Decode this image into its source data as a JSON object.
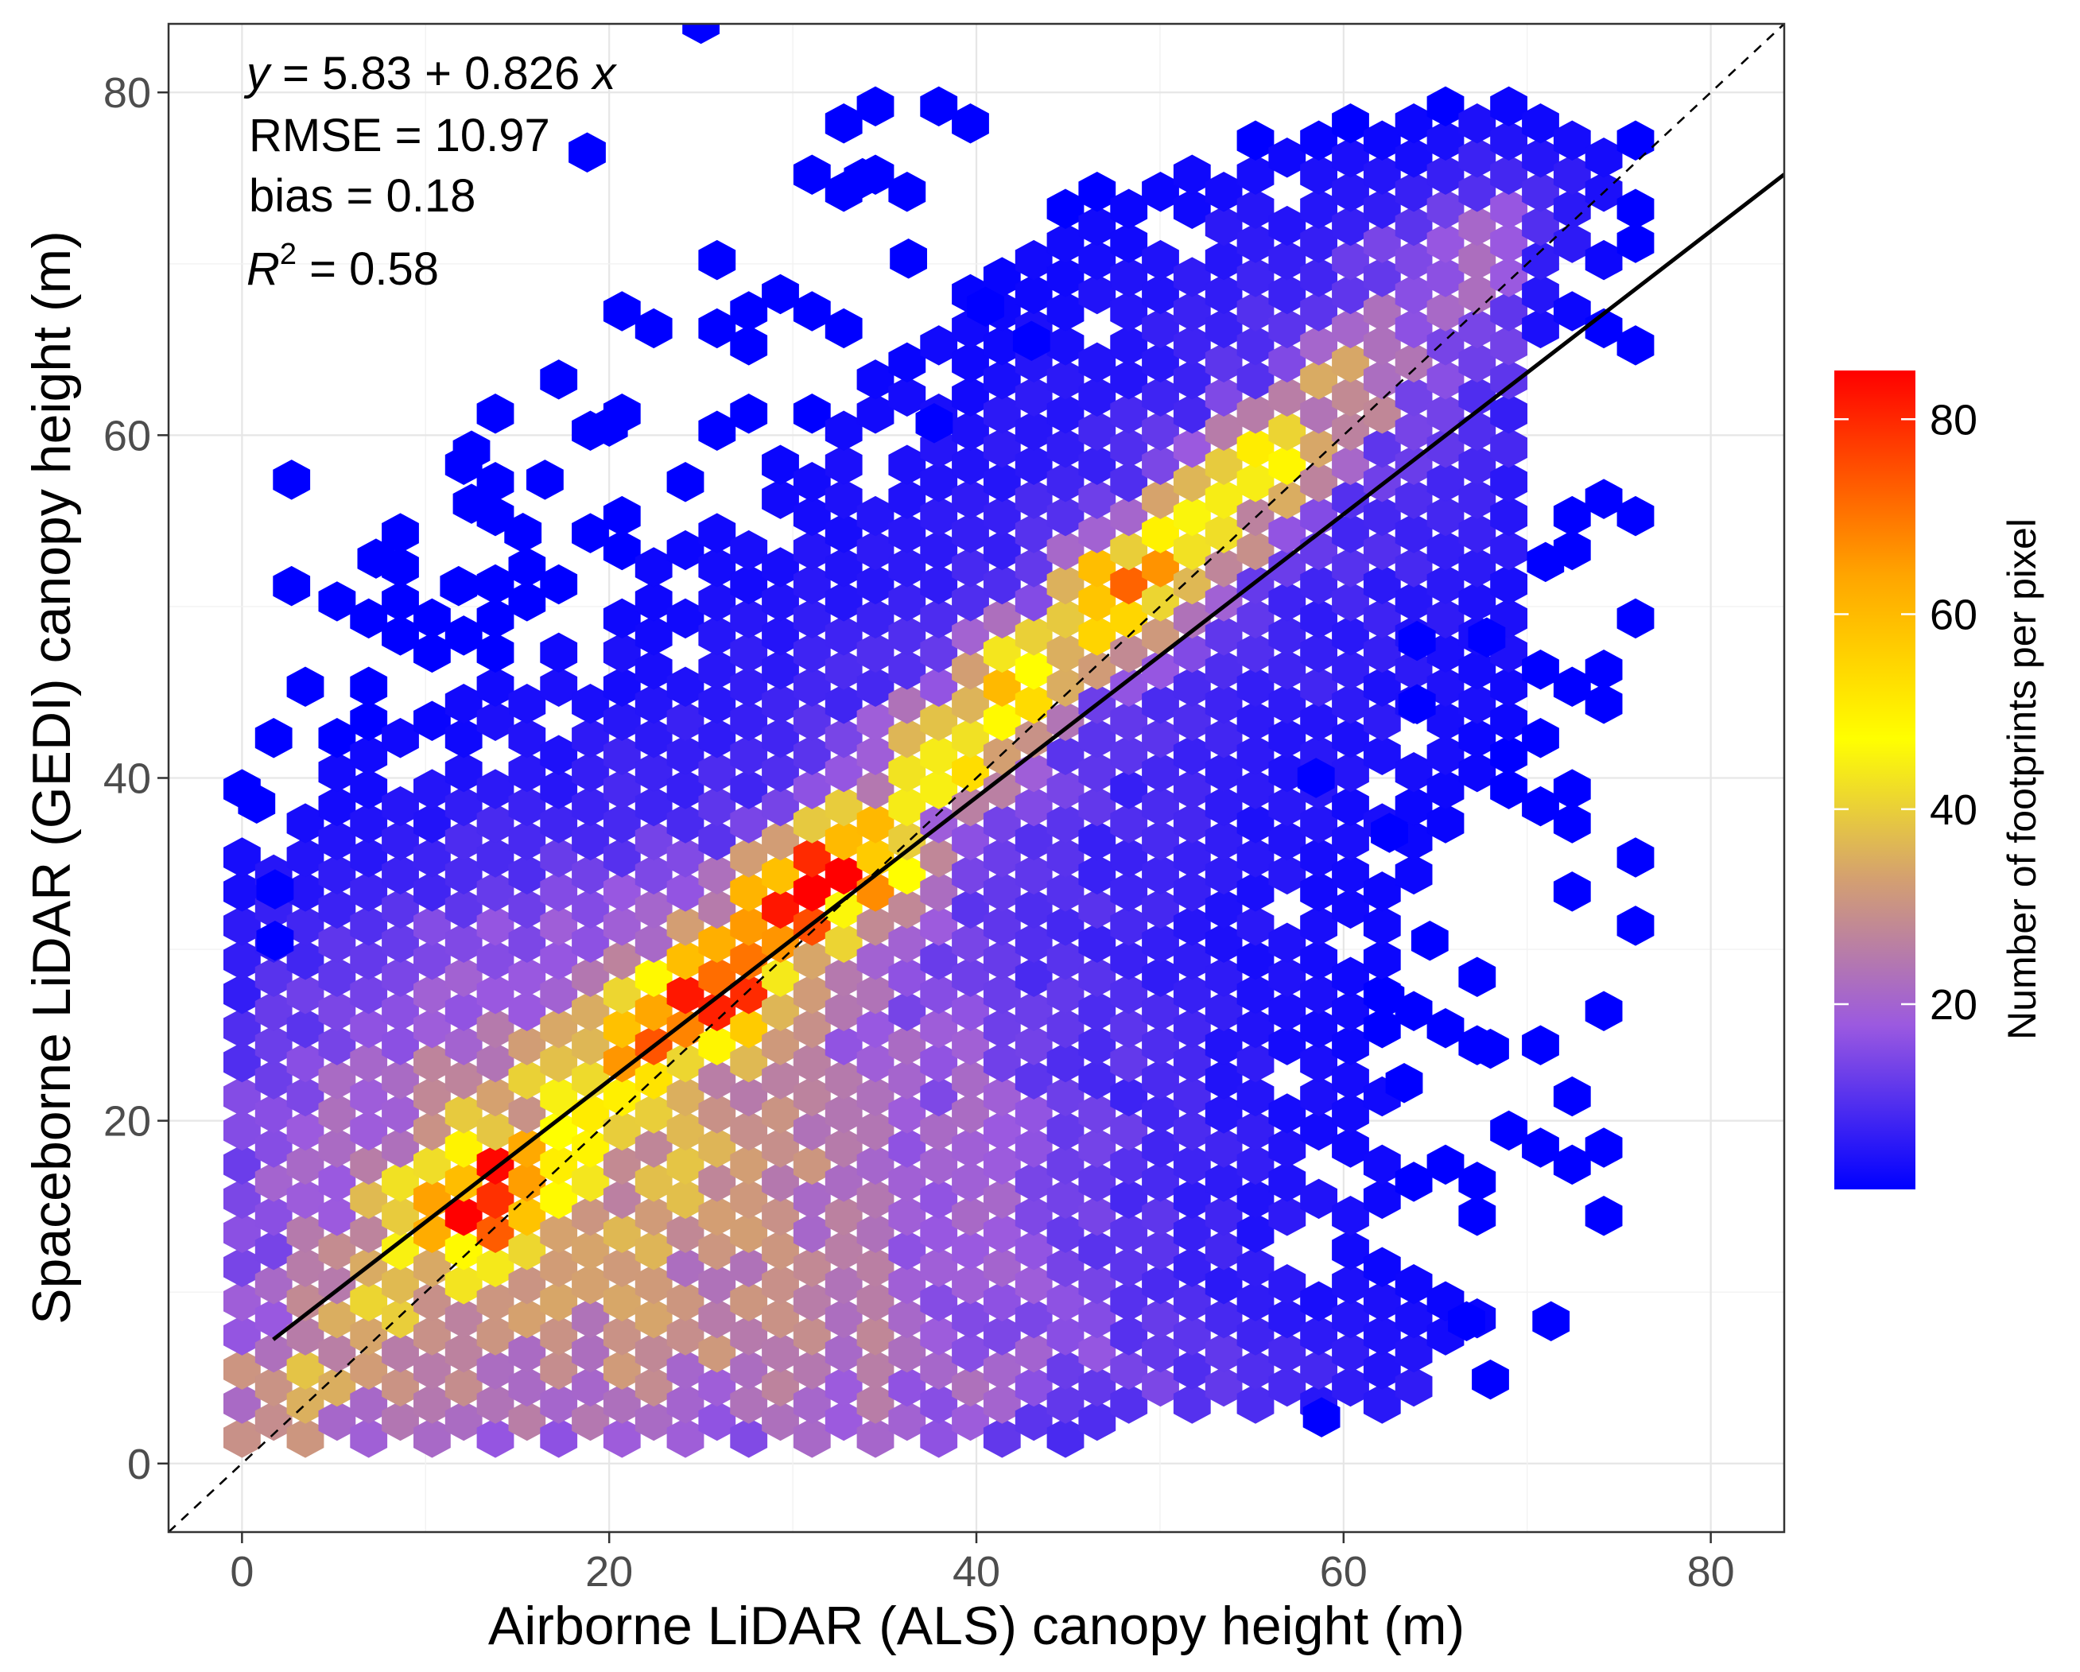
{
  "chart_data": {
    "type": "hexbin",
    "title": "",
    "xlabel": "Airborne LiDAR (ALS) canopy height (m)",
    "ylabel": "Spaceborne LiDAR (GEDI) canopy height (m)",
    "xlim": [
      -4,
      84
    ],
    "ylim": [
      -4,
      84
    ],
    "xticks": [
      "0",
      "20",
      "40",
      "60",
      "80"
    ],
    "yticks": [
      "0",
      "20",
      "40",
      "60",
      "80"
    ],
    "grid": true,
    "annotations": {
      "equation_y": "y",
      "equation_rest": " = 5.83 + 0.826 ",
      "equation_x": "x",
      "rmse": "RMSE = 10.97",
      "bias": "bias = 0.18",
      "r2_r": "R",
      "r2_sup": "2",
      "r2_value": " = 0.58"
    },
    "regression": {
      "intercept": 5.83,
      "slope": 0.826,
      "x_range": [
        1.7,
        84
      ]
    },
    "identity_line": {
      "slope": 1,
      "intercept": 0,
      "style": "dashed"
    },
    "legend": {
      "title": "Number of footprints per pixel",
      "position": "right",
      "range": [
        1,
        85
      ],
      "ticks": [
        "20",
        "40",
        "60",
        "80"
      ],
      "colors": [
        "#0000ff",
        "#9b59e0",
        "#d4a070",
        "#ffff00",
        "#ffa500",
        "#ff0000"
      ]
    },
    "hex_size": 1.15,
    "ridge_points": [
      {
        "x": 10,
        "y": 16,
        "count": 45
      },
      {
        "x": 12,
        "y": 16,
        "count": 58
      },
      {
        "x": 22,
        "y": 25,
        "count": 38
      },
      {
        "x": 26,
        "y": 28,
        "count": 60
      },
      {
        "x": 30,
        "y": 33,
        "count": 70
      },
      {
        "x": 33,
        "y": 35,
        "count": 72
      },
      {
        "x": 38,
        "y": 42,
        "count": 48
      },
      {
        "x": 42,
        "y": 46,
        "count": 45
      },
      {
        "x": 48,
        "y": 51,
        "count": 65
      },
      {
        "x": 52,
        "y": 54,
        "count": 48
      },
      {
        "x": 56,
        "y": 58,
        "count": 42
      },
      {
        "x": 60,
        "y": 62,
        "count": 25
      }
    ],
    "outlier_points": [
      [
        25,
        84
      ],
      [
        18.8,
        76.5
      ],
      [
        33.8,
        75
      ],
      [
        36.3,
        70.3
      ],
      [
        40.5,
        67.5
      ],
      [
        43,
        65.5
      ],
      [
        20,
        60.5
      ],
      [
        37.7,
        60.7
      ],
      [
        2.7,
        57.4
      ],
      [
        12.5,
        59.1
      ],
      [
        16.5,
        57.4
      ],
      [
        12.5,
        56
      ],
      [
        15.3,
        54.3
      ],
      [
        7.3,
        52.8
      ],
      [
        2.7,
        51.2
      ],
      [
        11.8,
        51.2
      ],
      [
        71,
        52.6
      ],
      [
        67.8,
        48.2
      ],
      [
        64,
        48
      ],
      [
        64,
        44.3
      ],
      [
        58.5,
        40
      ],
      [
        62.5,
        36.8
      ],
      [
        0.8,
        38.5
      ],
      [
        1.8,
        33.5
      ],
      [
        1.8,
        30.5
      ],
      [
        64.7,
        30.5
      ],
      [
        62.3,
        27.2
      ],
      [
        68,
        24.2
      ],
      [
        63.3,
        22.2
      ],
      [
        66.7,
        8.3
      ],
      [
        71.3,
        8.3
      ],
      [
        68,
        4.9
      ],
      [
        58.8,
        2.7
      ]
    ]
  }
}
